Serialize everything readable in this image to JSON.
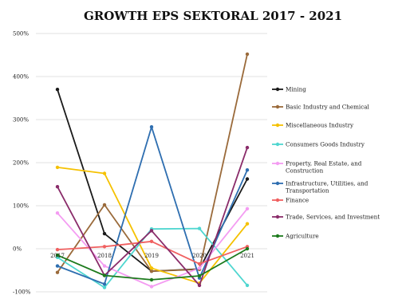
{
  "chart_data": {
    "type": "line",
    "title": "GROWTH EPS SEKTORAL 2017 - 2021",
    "xlabel": "",
    "ylabel": "",
    "categories": [
      "2017",
      "2018",
      "2019",
      "2020",
      "2021"
    ],
    "ylim": [
      -100,
      500
    ],
    "yticks": [
      -100,
      0,
      100,
      200,
      300,
      400,
      500
    ],
    "ytick_labels": [
      "-100%",
      "0%",
      "100%",
      "200%",
      "300%",
      "400%",
      "500%"
    ],
    "grid": true,
    "legend_position": "right",
    "series": [
      {
        "name": "Mining",
        "color": "#1a1a1a",
        "values": [
          370,
          35,
          -52,
          -47,
          162
        ]
      },
      {
        "name": "Basic Industry and Chemical",
        "color": "#9a6a3a",
        "values": [
          -55,
          102,
          -52,
          -48,
          452
        ]
      },
      {
        "name": "Miscellaneous Industry",
        "color": "#f5c100",
        "values": [
          189,
          175,
          -45,
          -80,
          58
        ]
      },
      {
        "name": "Consumers Goods Industry",
        "color": "#4fd6d0",
        "values": [
          -20,
          -90,
          46,
          47,
          -85
        ]
      },
      {
        "name": "Property, Real Estate, and Construction",
        "color": "#f49cf2",
        "values": [
          83,
          -40,
          -88,
          -45,
          93
        ]
      },
      {
        "name": "Infrastructure, Utilities, and Transportation",
        "color": "#2e6eb0",
        "values": [
          -40,
          -82,
          283,
          -68,
          183
        ]
      },
      {
        "name": "Finance",
        "color": "#f06060",
        "values": [
          -2,
          5,
          17,
          -35,
          5
        ]
      },
      {
        "name": "Trade, Services, and Investment",
        "color": "#8a2c6a",
        "values": [
          144,
          -62,
          42,
          -85,
          235
        ]
      },
      {
        "name": "Agriculture",
        "color": "#1c7a1c",
        "values": [
          -15,
          -62,
          -72,
          -63,
          0
        ]
      }
    ]
  }
}
